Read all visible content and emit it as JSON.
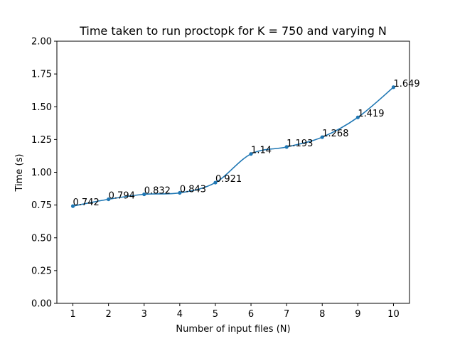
{
  "chart_data": {
    "type": "line",
    "title": "Time taken to run proctopk for K = 750 and varying N",
    "xlabel": "Number of input files (N)",
    "ylabel": "Time (s)",
    "x": [
      1,
      2,
      3,
      4,
      5,
      6,
      7,
      8,
      9,
      10
    ],
    "series": [
      {
        "values": [
          0.742,
          0.794,
          0.832,
          0.843,
          0.921,
          1.14,
          1.193,
          1.268,
          1.419,
          1.649
        ]
      }
    ],
    "data_labels": [
      "0.742",
      "0.794",
      "0.832",
      "0.843",
      "0.921",
      "1.14",
      "1.193",
      "1.268",
      "1.419",
      "1.649"
    ],
    "xticks": [
      "1",
      "2",
      "3",
      "4",
      "5",
      "6",
      "7",
      "8",
      "9",
      "10"
    ],
    "yticks": [
      "0.00",
      "0.25",
      "0.50",
      "0.75",
      "1.00",
      "1.25",
      "1.50",
      "1.75",
      "2.00"
    ],
    "xlim": [
      0.55,
      10.45
    ],
    "ylim": [
      0,
      2.0
    ],
    "grid": false,
    "line_color": "#1f77b4",
    "marker": "circle"
  }
}
